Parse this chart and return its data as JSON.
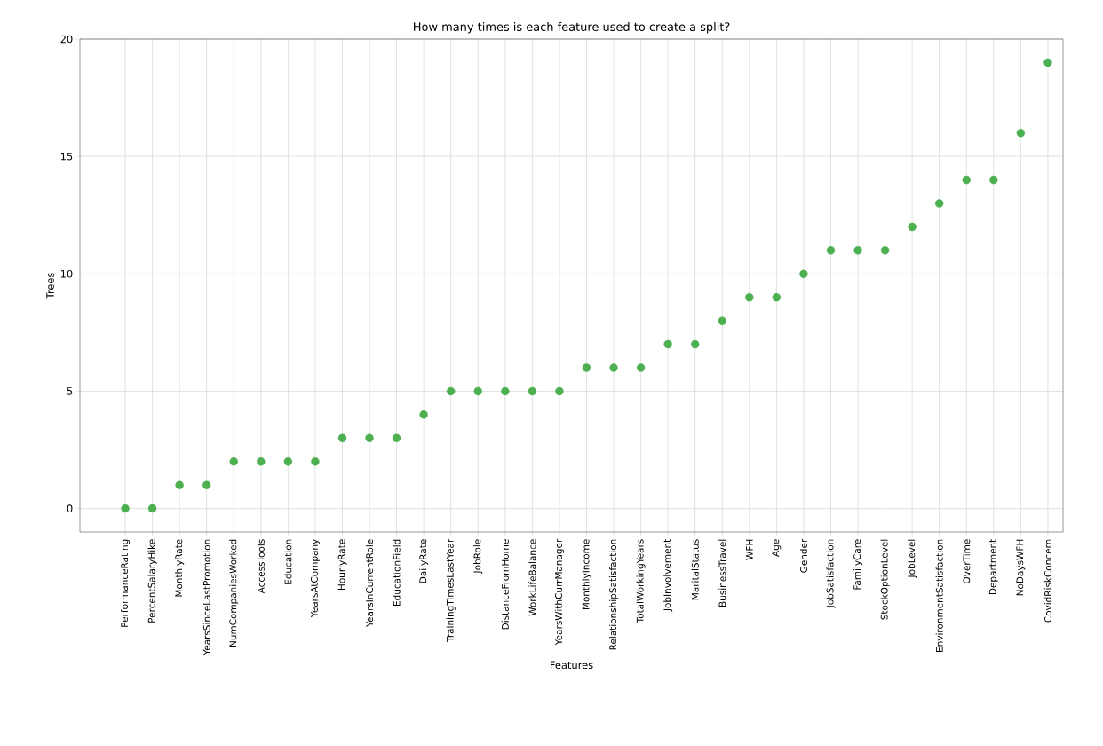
{
  "chart_data": {
    "type": "scatter",
    "title": "How many times is each feature used to create a split?",
    "xlabel": "Features",
    "ylabel": "Trees",
    "categories": [
      "PerformanceRating",
      "PercentSalaryHike",
      "MonthlyRate",
      "YearsSinceLastPromotion",
      "NumCompaniesWorked",
      "AccessTools",
      "Education",
      "YearsAtCompany",
      "HourlyRate",
      "YearsInCurrentRole",
      "EducationField",
      "DailyRate",
      "TrainingTimesLastYear",
      "JobRole",
      "DistanceFromHome",
      "WorkLifeBalance",
      "YearsWithCurrManager",
      "MonthlyIncome",
      "RelationshipSatisfaction",
      "TotalWorkingYears",
      "JobInvolvement",
      "MaritalStatus",
      "BusinessTravel",
      "WFH",
      "Age",
      "Gender",
      "JobSatisfaction",
      "FamilyCare",
      "StockOptionLevel",
      "JobLevel",
      "EnvironmentSatisfaction",
      "OverTime",
      "Department",
      "NoDaysWFH",
      "CovidRiskConcern"
    ],
    "values": [
      0,
      0,
      1,
      1,
      2,
      2,
      2,
      2,
      3,
      3,
      3,
      4,
      5,
      5,
      5,
      5,
      5,
      6,
      6,
      6,
      7,
      7,
      8,
      9,
      9,
      10,
      11,
      11,
      11,
      12,
      13,
      14,
      14,
      16,
      19
    ],
    "color": "#4caf50",
    "ylim": [
      -1,
      20
    ],
    "yticks": [
      0,
      5,
      10,
      15,
      20
    ],
    "grid": true
  }
}
